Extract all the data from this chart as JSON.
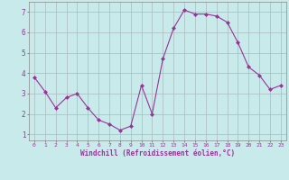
{
  "x": [
    0,
    1,
    2,
    3,
    4,
    5,
    6,
    7,
    8,
    9,
    10,
    11,
    12,
    13,
    14,
    15,
    16,
    17,
    18,
    19,
    20,
    21,
    22,
    23
  ],
  "y": [
    3.8,
    3.1,
    2.3,
    2.8,
    3.0,
    2.3,
    1.7,
    1.5,
    1.2,
    1.4,
    3.4,
    2.0,
    4.7,
    6.2,
    7.1,
    6.9,
    6.9,
    6.8,
    6.5,
    5.5,
    4.3,
    3.9,
    3.2,
    3.4
  ],
  "line_color": "#993399",
  "marker": "D",
  "marker_size": 2.0,
  "bg_color": "#c8eaea",
  "grid_color": "#aabbbb",
  "xlabel": "Windchill (Refroidissement éolien,°C)",
  "xlabel_color": "#993399",
  "tick_color": "#993399",
  "ylabel_ticks": [
    1,
    2,
    3,
    4,
    5,
    6,
    7
  ],
  "xlim": [
    -0.5,
    23.5
  ],
  "ylim": [
    0.7,
    7.5
  ]
}
